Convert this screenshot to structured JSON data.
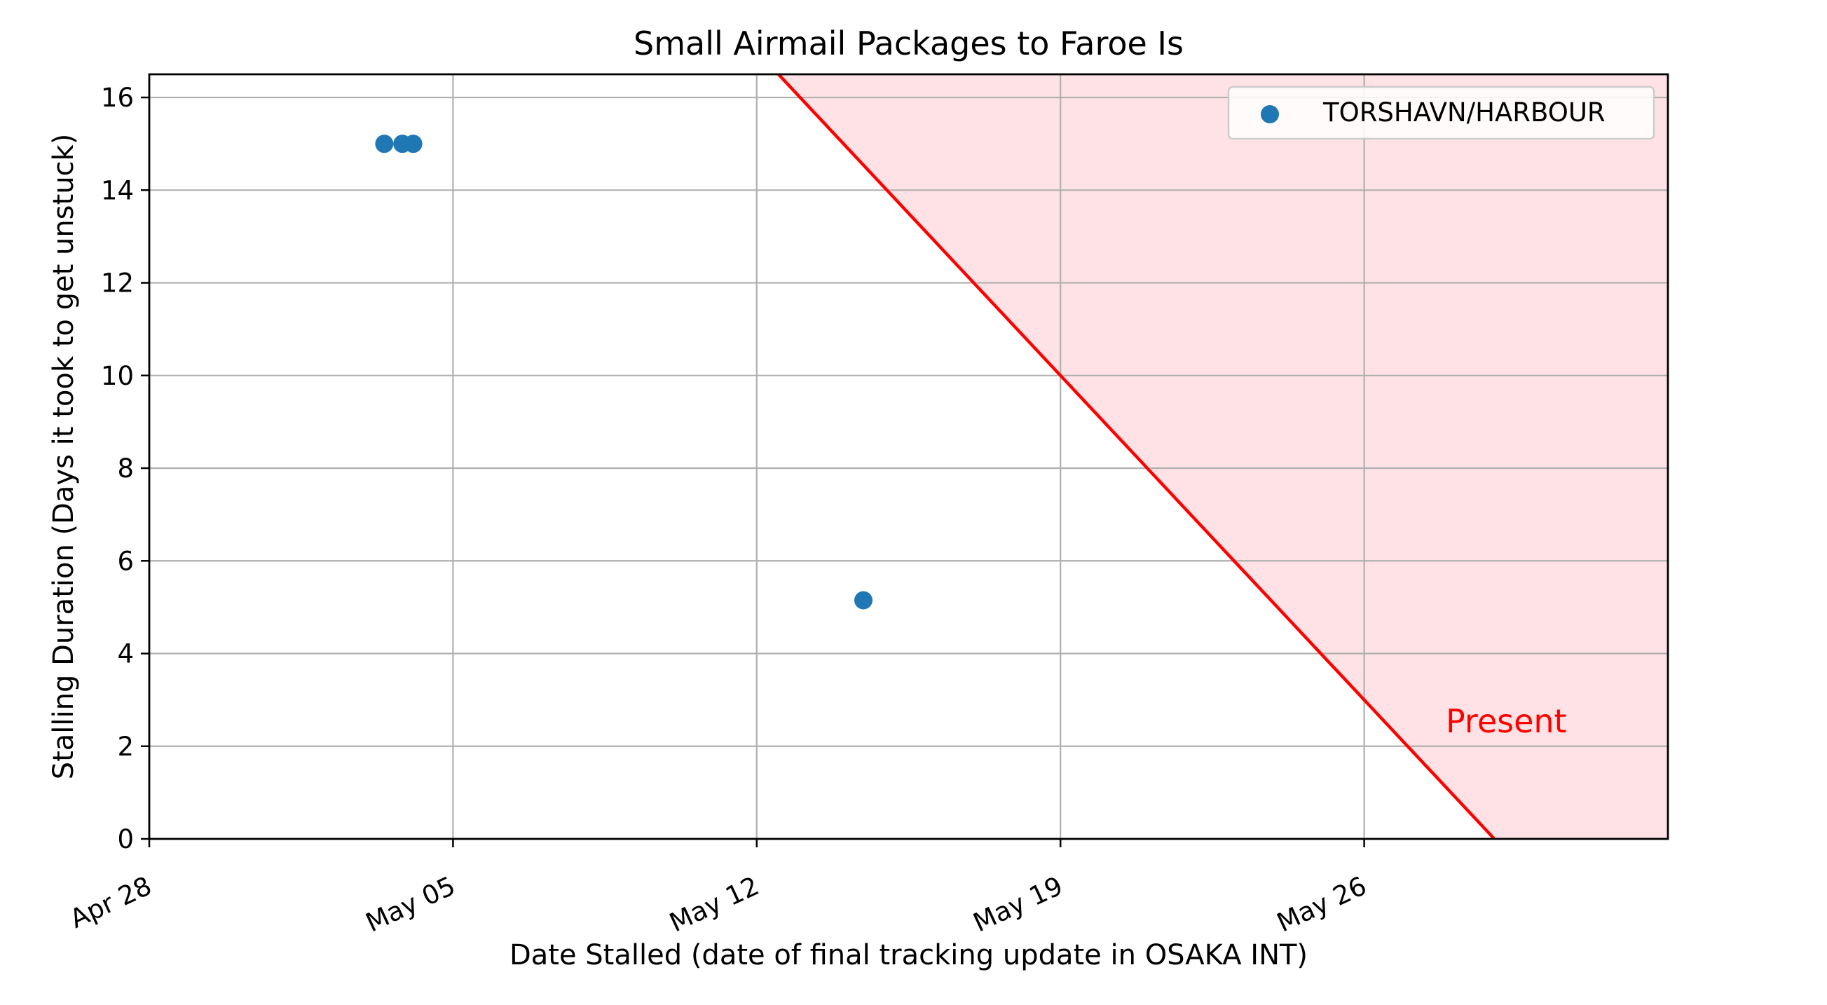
{
  "chart_data": {
    "type": "scatter",
    "title": "Small Airmail Packages to Faroe Is",
    "xlabel": "Date Stalled (date of final tracking update in OSAKA INT)",
    "ylabel": "Stalling Duration (Days it took to get unstuck)",
    "x_axis_type": "date",
    "xlim": [
      "2024-04-28",
      "2024-06-02"
    ],
    "ylim": [
      0,
      16.5
    ],
    "x_ticks": [
      {
        "date": "2024-04-28",
        "label": "Apr 28"
      },
      {
        "date": "2024-05-05",
        "label": "May 05"
      },
      {
        "date": "2024-05-12",
        "label": "May 12"
      },
      {
        "date": "2024-05-19",
        "label": "May 19"
      },
      {
        "date": "2024-05-26",
        "label": "May 26"
      }
    ],
    "y_ticks": [
      0,
      2,
      4,
      6,
      8,
      10,
      12,
      14,
      16
    ],
    "grid": true,
    "series": [
      {
        "name": "TORSHAVN/HARBOUR",
        "color": "#1f77b4",
        "points": [
          {
            "x": "2024-05-03 10:00",
            "y": 15.0
          },
          {
            "x": "2024-05-03 20:00",
            "y": 15.0
          },
          {
            "x": "2024-05-04 02:00",
            "y": 15.0
          },
          {
            "x": "2024-05-14 11:00",
            "y": 5.15
          }
        ]
      }
    ],
    "present_line": {
      "label": "Present",
      "color": "#ff0000",
      "shade_color": "#ffe2e5",
      "date": "2024-05-29",
      "points": [
        {
          "x": "2024-05-12 12:00",
          "y": 16.5
        },
        {
          "x": "2024-05-29 00:00",
          "y": 0
        }
      ]
    },
    "legend": {
      "position": "top-right",
      "entries": [
        "TORSHAVN/HARBOUR"
      ]
    }
  }
}
